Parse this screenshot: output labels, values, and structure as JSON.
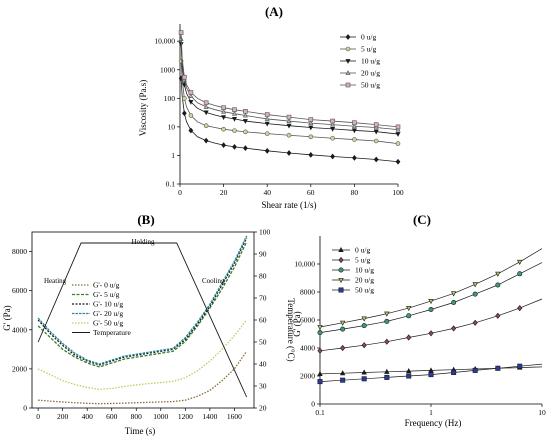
{
  "chart_data": [
    {
      "panel": "(A)",
      "type": "line",
      "xlabel": "Shear rate (1/s)",
      "ylabel": "Viscosity (Pa.s)",
      "xlim": [
        0,
        100
      ],
      "ylim": [
        0.1,
        40000
      ],
      "yscale": "log",
      "x_ticks": [
        0,
        20,
        40,
        60,
        80,
        100
      ],
      "y_ticks": [
        {
          "v": 0.1,
          "label": "0.1"
        },
        {
          "v": 1,
          "label": "1"
        },
        {
          "v": 10,
          "label": "10"
        },
        {
          "v": 100,
          "label": "100"
        },
        {
          "v": 1000,
          "label": "1000"
        },
        {
          "v": 10000,
          "label": "10,000"
        }
      ],
      "legend_position": "top-right",
      "series": [
        {
          "name": "0 u/g",
          "marker": "diamond",
          "color": "#1a1a1a",
          "fill": "#1a1a1a",
          "x": [
            0.5,
            1,
            2,
            3,
            5,
            8,
            12,
            16,
            20,
            25,
            30,
            40,
            50,
            60,
            70,
            80,
            90,
            100
          ],
          "y": [
            500,
            120,
            30,
            15,
            7.5,
            4.5,
            3.3,
            2.7,
            2.3,
            2.0,
            1.8,
            1.45,
            1.22,
            1.05,
            0.92,
            0.82,
            0.72,
            0.6
          ]
        },
        {
          "name": "5 u/g",
          "marker": "circle",
          "color": "#555555",
          "fill": "#c8d89a",
          "x": [
            0.5,
            1,
            2,
            3,
            5,
            8,
            12,
            16,
            20,
            25,
            30,
            40,
            50,
            60,
            70,
            80,
            90,
            100
          ],
          "y": [
            2000,
            450,
            100,
            50,
            25,
            15,
            11,
            9.5,
            8.3,
            7.4,
            6.7,
            5.8,
            5.1,
            4.5,
            4.0,
            3.6,
            3.2,
            2.6
          ]
        },
        {
          "name": "10 u/g",
          "marker": "triangle-down",
          "color": "#1a1a1a",
          "fill": "#1a1a1a",
          "x": [
            0.5,
            1,
            2,
            3,
            5,
            8,
            12,
            16,
            20,
            25,
            30,
            40,
            50,
            60,
            70,
            80,
            90,
            100
          ],
          "y": [
            8000,
            1200,
            300,
            150,
            75,
            45,
            32,
            26,
            22,
            19,
            16,
            13,
            11,
            9.5,
            8.5,
            7.5,
            6.8,
            5.6
          ]
        },
        {
          "name": "20 u/g",
          "marker": "triangle-up",
          "color": "#555555",
          "fill": "#9ab6c8",
          "x": [
            0.5,
            1,
            2,
            3,
            5,
            8,
            12,
            16,
            20,
            25,
            30,
            40,
            50,
            60,
            70,
            80,
            90,
            100
          ],
          "y": [
            12000,
            1800,
            450,
            230,
            120,
            70,
            50,
            40,
            34,
            29,
            25,
            19,
            16,
            13.5,
            12,
            10.5,
            9.5,
            8
          ]
        },
        {
          "name": "50 u/g",
          "marker": "square",
          "color": "#555555",
          "fill": "#d9b0b8",
          "x": [
            0.5,
            1,
            2,
            3,
            5,
            8,
            12,
            16,
            20,
            25,
            30,
            40,
            50,
            60,
            70,
            80,
            90,
            100
          ],
          "y": [
            20000,
            2500,
            550,
            300,
            160,
            100,
            70,
            56,
            47,
            40,
            35,
            27,
            22,
            18,
            16,
            14,
            12,
            10
          ]
        }
      ]
    },
    {
      "panel": "(B)",
      "type": "line",
      "xlabel": "Time (s)",
      "ylabel": "G' (Pa)",
      "y2label": "Temperature (°C)",
      "xlim": [
        -50,
        1760
      ],
      "ylim": [
        0,
        9000
      ],
      "y2lim": [
        20,
        100
      ],
      "x_ticks": [
        0,
        200,
        400,
        600,
        800,
        1000,
        1200,
        1400,
        1600
      ],
      "y_ticks": [
        0,
        2000,
        4000,
        6000,
        8000
      ],
      "y2_ticks": [
        20,
        30,
        40,
        50,
        60,
        70,
        80,
        90,
        100
      ],
      "annotations": [
        "Heating",
        "Holding",
        "Cooling"
      ],
      "legend_position": "center-left",
      "series": [
        {
          "name": "G'- 0 u/g",
          "color": "#8b6a3a",
          "x": [
            0,
            100,
            200,
            300,
            400,
            500,
            600,
            700,
            800,
            900,
            1000,
            1100,
            1200,
            1300,
            1400,
            1500,
            1600,
            1700
          ],
          "y": [
            400,
            350,
            310,
            270,
            240,
            220,
            230,
            250,
            270,
            290,
            310,
            330,
            400,
            600,
            900,
            1400,
            2000,
            2900
          ]
        },
        {
          "name": "G'- 5 u/g",
          "color": "#3a7a2a",
          "x": [
            0,
            100,
            200,
            300,
            400,
            500,
            600,
            700,
            800,
            900,
            1000,
            1100,
            1200,
            1300,
            1400,
            1500,
            1600,
            1700
          ],
          "y": [
            4200,
            3600,
            3000,
            2600,
            2300,
            2100,
            2300,
            2500,
            2600,
            2700,
            2800,
            2900,
            3400,
            4200,
            5100,
            6100,
            7200,
            8500
          ]
        },
        {
          "name": "G'- 10 u/g",
          "color": "#1a1a1a",
          "x": [
            0,
            100,
            200,
            300,
            400,
            500,
            600,
            700,
            800,
            900,
            1000,
            1100,
            1200,
            1300,
            1400,
            1500,
            1600,
            1700
          ],
          "y": [
            4500,
            3800,
            3200,
            2700,
            2400,
            2200,
            2400,
            2600,
            2700,
            2800,
            2900,
            3000,
            3500,
            4300,
            5200,
            6300,
            7400,
            8700
          ]
        },
        {
          "name": "G'- 20 u/g",
          "color": "#2a8a9a",
          "x": [
            0,
            100,
            200,
            300,
            400,
            500,
            600,
            700,
            800,
            900,
            1000,
            1100,
            1200,
            1300,
            1400,
            1500,
            1600,
            1700
          ],
          "y": [
            4600,
            3900,
            3300,
            2800,
            2450,
            2250,
            2450,
            2650,
            2750,
            2850,
            2950,
            3050,
            3600,
            4400,
            5300,
            6400,
            7500,
            8800
          ]
        },
        {
          "name": "G'- 50 u/g",
          "color": "#c8c860",
          "x": [
            0,
            100,
            200,
            300,
            400,
            500,
            600,
            700,
            800,
            900,
            1000,
            1100,
            1200,
            1300,
            1400,
            1500,
            1600,
            1700
          ],
          "y": [
            2000,
            1700,
            1400,
            1200,
            1050,
            950,
            1000,
            1100,
            1180,
            1250,
            1300,
            1360,
            1550,
            1900,
            2400,
            3000,
            3700,
            4500
          ]
        },
        {
          "name": "Temperature",
          "color": "#1a1a1a",
          "axis": "y2",
          "x": [
            0,
            350,
            1130,
            1700
          ],
          "y": [
            50,
            95,
            95,
            25
          ]
        }
      ]
    },
    {
      "panel": "(C)",
      "type": "line",
      "xlabel": "Frequency (Hz)",
      "ylabel": "G' (Pa)",
      "xscale": "log",
      "xlim": [
        0.1,
        10
      ],
      "ylim": [
        0,
        12000
      ],
      "x_ticks": [
        {
          "v": 0.1,
          "label": "0.1"
        },
        {
          "v": 1,
          "label": "1"
        },
        {
          "v": 10,
          "label": "10"
        }
      ],
      "y_ticks": [
        {
          "v": 0,
          "label": "0"
        },
        {
          "v": 2000,
          "label": "2000"
        },
        {
          "v": 4000,
          "label": "4000"
        },
        {
          "v": 6000,
          "label": "6000"
        },
        {
          "v": 8000,
          "label": "8000"
        },
        {
          "v": 10000,
          "label": "10,000"
        }
      ],
      "legend_position": "top-left",
      "series": [
        {
          "name": "0 u/g",
          "marker": "triangle-up",
          "color": "#1a1a1a",
          "fill": "#1a1a1a",
          "x": [
            0.1,
            0.16,
            0.25,
            0.4,
            0.63,
            1.0,
            1.6,
            2.5,
            4.0,
            6.3,
            10
          ],
          "y": [
            2150,
            2200,
            2250,
            2300,
            2350,
            2400,
            2450,
            2500,
            2550,
            2600,
            2650
          ]
        },
        {
          "name": "5 u/g",
          "marker": "diamond",
          "color": "#1a1a1a",
          "fill": "#8b4a5a",
          "x": [
            0.1,
            0.16,
            0.25,
            0.4,
            0.63,
            1.0,
            1.6,
            2.5,
            4.0,
            6.3,
            10
          ],
          "y": [
            3800,
            4000,
            4200,
            4450,
            4750,
            5050,
            5400,
            5800,
            6300,
            6850,
            7500
          ]
        },
        {
          "name": "10 u/g",
          "marker": "circle",
          "color": "#1a1a1a",
          "fill": "#3a9a7a",
          "x": [
            0.1,
            0.16,
            0.25,
            0.4,
            0.63,
            1.0,
            1.6,
            2.5,
            4.0,
            6.3,
            10
          ],
          "y": [
            5100,
            5350,
            5600,
            5900,
            6300,
            6750,
            7250,
            7850,
            8500,
            9300,
            10100
          ]
        },
        {
          "name": "20 u/g",
          "marker": "triangle-down",
          "color": "#1a1a1a",
          "fill": "#b8c860",
          "x": [
            0.1,
            0.16,
            0.25,
            0.4,
            0.63,
            1.0,
            1.6,
            2.5,
            4.0,
            6.3,
            10
          ],
          "y": [
            5500,
            5800,
            6100,
            6450,
            6850,
            7350,
            7900,
            8550,
            9300,
            10150,
            11100
          ]
        },
        {
          "name": "50 u/g",
          "marker": "square",
          "color": "#1a1a1a",
          "fill": "#2a3a9a",
          "x": [
            0.1,
            0.16,
            0.25,
            0.4,
            0.63,
            1.0,
            1.6,
            2.5,
            4.0,
            6.3,
            10
          ],
          "y": [
            1600,
            1700,
            1800,
            1900,
            2000,
            2100,
            2250,
            2400,
            2550,
            2700,
            2850
          ]
        }
      ]
    }
  ]
}
